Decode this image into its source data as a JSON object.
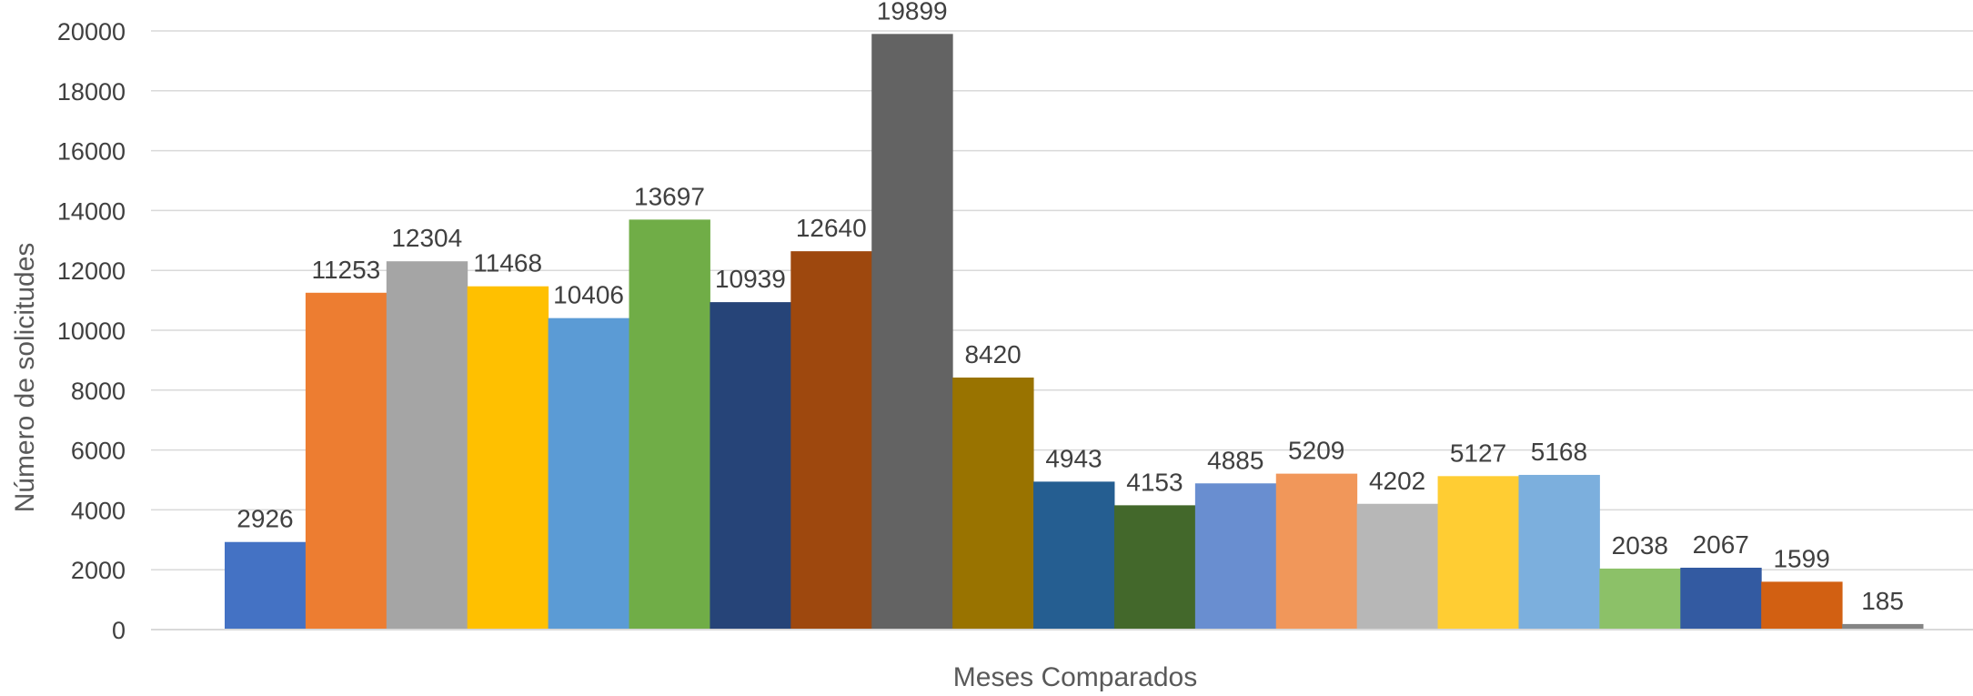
{
  "chart_data": {
    "type": "bar",
    "xlabel": "Meses Comparados",
    "ylabel": "Número de solicitudes",
    "ylim": [
      0,
      20000
    ],
    "yticks": [
      "0",
      "2000",
      "4000",
      "6000",
      "8000",
      "10000",
      "12000",
      "14000",
      "16000",
      "18000",
      "20000"
    ],
    "grid": true,
    "values": [
      2926,
      11253,
      12304,
      11468,
      10406,
      13697,
      10939,
      12640,
      19899,
      8420,
      4943,
      4153,
      4885,
      5209,
      4202,
      5127,
      5168,
      2038,
      2067,
      1599,
      185
    ],
    "data_labels": [
      "2926",
      "11253",
      "12304",
      "11468",
      "10406",
      "13697",
      "10939",
      "12640",
      "19899",
      "8420",
      "4943",
      "4153",
      "4885",
      "5209",
      "4202",
      "5127",
      "5168",
      "2038",
      "2067",
      "1599",
      "185"
    ],
    "colors": [
      "#4472C4",
      "#ED7D31",
      "#A5A5A5",
      "#FFC000",
      "#5B9BD5",
      "#70AD47",
      "#264478",
      "#9E480E",
      "#636363",
      "#997300",
      "#255E91",
      "#43682B",
      "#698ED0",
      "#F1975A",
      "#B7B7B7",
      "#FFCD33",
      "#7CAFDD",
      "#8CC168",
      "#335AA1",
      "#D26012",
      "#848484"
    ]
  }
}
